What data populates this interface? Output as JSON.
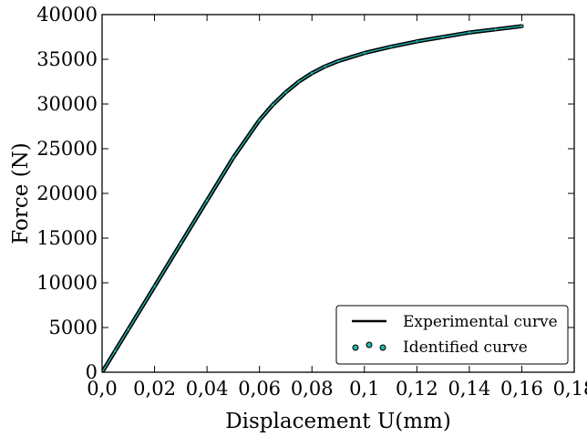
{
  "chart_data": {
    "type": "line",
    "title": "",
    "xlabel": "Displacement U(mm)",
    "ylabel": "Force (N)",
    "xlim": [
      0,
      0.18
    ],
    "ylim": [
      0,
      40000
    ],
    "x_ticks": [
      "0,0",
      "0,02",
      "0,04",
      "0,06",
      "0,08",
      "0,1",
      "0,12",
      "0,14",
      "0,16",
      "0,18"
    ],
    "y_ticks": [
      "0",
      "5000",
      "10000",
      "15000",
      "20000",
      "25000",
      "30000",
      "35000",
      "40000"
    ],
    "grid": false,
    "legend_position": "bottom-right",
    "series": [
      {
        "name": "Experimental curve",
        "style": "line",
        "color": "#000000",
        "x": [
          0,
          0.005,
          0.01,
          0.02,
          0.03,
          0.04,
          0.05,
          0.06,
          0.065,
          0.07,
          0.075,
          0.08,
          0.085,
          0.09,
          0.1,
          0.11,
          0.12,
          0.13,
          0.14,
          0.15,
          0.16
        ],
        "y": [
          0,
          2400,
          4800,
          9600,
          14400,
          19200,
          24000,
          28200,
          29900,
          31300,
          32500,
          33450,
          34200,
          34800,
          35700,
          36400,
          37000,
          37500,
          38000,
          38350,
          38700
        ]
      },
      {
        "name": "Identified curve",
        "style": "markers",
        "color": "#20b2aa",
        "x": [
          0,
          0.005,
          0.01,
          0.02,
          0.03,
          0.04,
          0.05,
          0.06,
          0.065,
          0.07,
          0.075,
          0.08,
          0.085,
          0.09,
          0.1,
          0.11,
          0.12,
          0.13,
          0.14,
          0.15,
          0.16
        ],
        "y": [
          0,
          2400,
          4800,
          9600,
          14400,
          19200,
          24000,
          28200,
          29900,
          31300,
          32500,
          33450,
          34200,
          34800,
          35700,
          36400,
          37000,
          37500,
          38000,
          38350,
          38700
        ]
      }
    ]
  }
}
